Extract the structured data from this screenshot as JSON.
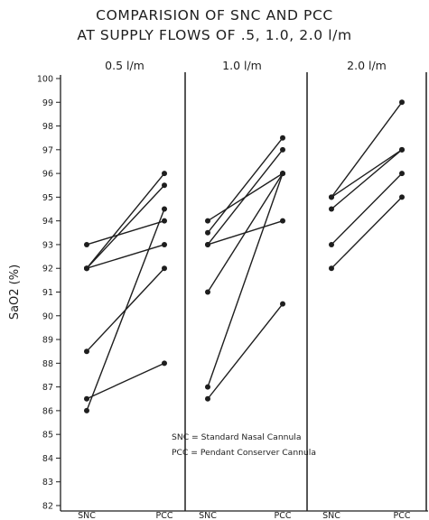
{
  "chart_data": {
    "type": "line",
    "title": [
      "COMPARISION OF SNC AND PCC",
      "AT SUPPLY FLOWS OF .5, 1.0, 2.0 l/m"
    ],
    "ylabel": "SaO2 (%)",
    "ylim": [
      82,
      100
    ],
    "yticks": [
      82,
      83,
      84,
      85,
      86,
      87,
      88,
      89,
      90,
      91,
      92,
      93,
      94,
      95,
      96,
      97,
      98,
      99,
      100
    ],
    "grid": false,
    "panels": [
      {
        "label": "0.5 l/m",
        "categories": [
          "SNC",
          "PCC"
        ],
        "pairs": [
          [
            93,
            94
          ],
          [
            92,
            96
          ],
          [
            92,
            95.5
          ],
          [
            92,
            93
          ],
          [
            88.5,
            92
          ],
          [
            86.5,
            88
          ],
          [
            86,
            94.5
          ]
        ]
      },
      {
        "label": "1.0 l/m",
        "categories": [
          "SNC",
          "PCC"
        ],
        "pairs": [
          [
            94,
            96
          ],
          [
            93.5,
            97.5
          ],
          [
            93,
            97
          ],
          [
            93,
            94
          ],
          [
            91,
            96
          ],
          [
            87,
            96
          ],
          [
            86.5,
            90.5
          ]
        ]
      },
      {
        "label": "2.0 l/m",
        "categories": [
          "SNC",
          "PCC"
        ],
        "pairs": [
          [
            95,
            99
          ],
          [
            95,
            97
          ],
          [
            94.5,
            97
          ],
          [
            93,
            96
          ],
          [
            92,
            95
          ]
        ]
      }
    ],
    "legend": {
      "position": "bottom-center",
      "lines": [
        "SNC = Standard Nasal Cannula",
        "PCC = Pendant Conserver Cannula"
      ]
    }
  }
}
